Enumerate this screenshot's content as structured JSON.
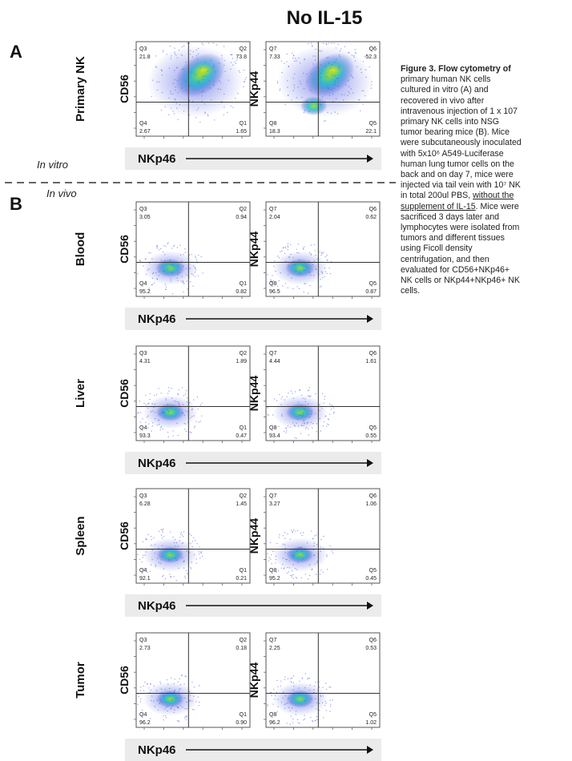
{
  "title": "No IL-15",
  "panel_a_letter": "A",
  "panel_b_letter": "B",
  "in_vitro": "In vitro",
  "in_vivo": "In vivo",
  "x_axis_label": "NKp46",
  "rows": [
    {
      "label": "Primary NK",
      "plots": [
        {
          "ylabel": "CD56",
          "q": [
            "Q3",
            "Q2",
            "Q4",
            "Q1"
          ],
          "v": [
            "21.8",
            "73.8",
            "2.67",
            "1.65"
          ],
          "level": 0.95
        },
        {
          "ylabel": "NKp44",
          "q": [
            "Q7",
            "Q6",
            "Q8",
            "Q5"
          ],
          "v": [
            "7.33",
            "52.3",
            "18.3",
            "22.1"
          ],
          "level": 0.95
        }
      ]
    },
    {
      "label": "Blood",
      "plots": [
        {
          "ylabel": "CD56",
          "q": [
            "Q3",
            "Q2",
            "Q4",
            "Q1"
          ],
          "v": [
            "3.05",
            "0.94",
            "95.2",
            "0.82"
          ],
          "level": 0.7
        },
        {
          "ylabel": "NKp44",
          "q": [
            "Q7",
            "Q6",
            "Q8",
            "Q5"
          ],
          "v": [
            "2.04",
            "0.62",
            "96.5",
            "0.87"
          ],
          "level": 0.7
        }
      ]
    },
    {
      "label": "Liver",
      "plots": [
        {
          "ylabel": "CD56",
          "q": [
            "Q3",
            "Q2",
            "Q4",
            "Q1"
          ],
          "v": [
            "4.31",
            "1.89",
            "93.3",
            "0.47"
          ],
          "level": 0.6
        },
        {
          "ylabel": "NKp44",
          "q": [
            "Q7",
            "Q6",
            "Q8",
            "Q5"
          ],
          "v": [
            "4.44",
            "1.61",
            "93.4",
            "0.55"
          ],
          "level": 0.6
        }
      ]
    },
    {
      "label": "Spleen",
      "plots": [
        {
          "ylabel": "CD56",
          "q": [
            "Q3",
            "Q2",
            "Q4",
            "Q1"
          ],
          "v": [
            "6.28",
            "1.45",
            "92.1",
            "0.21"
          ],
          "level": 0.45
        },
        {
          "ylabel": "NKp44",
          "q": [
            "Q7",
            "Q6",
            "Q8",
            "Q5"
          ],
          "v": [
            "3.27",
            "1.06",
            "95.2",
            "0.45"
          ],
          "level": 0.45
        }
      ]
    },
    {
      "label": "Tumor",
      "plots": [
        {
          "ylabel": "CD56",
          "q": [
            "Q3",
            "Q2",
            "Q4",
            "Q1"
          ],
          "v": [
            "2.73",
            "0.18",
            "96.2",
            "0.90"
          ],
          "level": 0.55
        },
        {
          "ylabel": "NKp44",
          "q": [
            "Q7",
            "Q6",
            "Q8",
            "Q5"
          ],
          "v": [
            "2.25",
            "0.53",
            "96.2",
            "1.02"
          ],
          "level": 0.55
        }
      ]
    }
  ],
  "caption_lines": [
    "Figure 3. Flow cytometry  of",
    "primary human NK cells",
    "cultured in vitro (A) and",
    "recovered  in vivo after",
    "intravenous injection of 1 x 107",
    "primary NK cells into NSG",
    "tumor bearing mice (B). Mice",
    "were subcutaneously inoculated",
    "with 5x10⁶ A549-Luciferase",
    "human lung tumor cells on the",
    "back and on day 7, mice were",
    "injected via tail vein with 10⁷ NK",
    "in total 200ul PBS, ",
    "without the",
    "supplement of IL-15",
    ". Mice were",
    "sacrificed 3 days later and",
    "lymphocytes were isolated from",
    "tumors and different tissues",
    "using Ficoll density",
    "centrifugation, and then",
    "evaluated  for CD56+NKp46+",
    "NK cells or NKp44+NKp46+ NK",
    "cells."
  ],
  "colors": {
    "low": "#2b3bd8",
    "mid": "#20c0c8",
    "high": "#9ee020",
    "top": "#f5e600",
    "line": "#333333",
    "bar": "#ebebeb"
  }
}
